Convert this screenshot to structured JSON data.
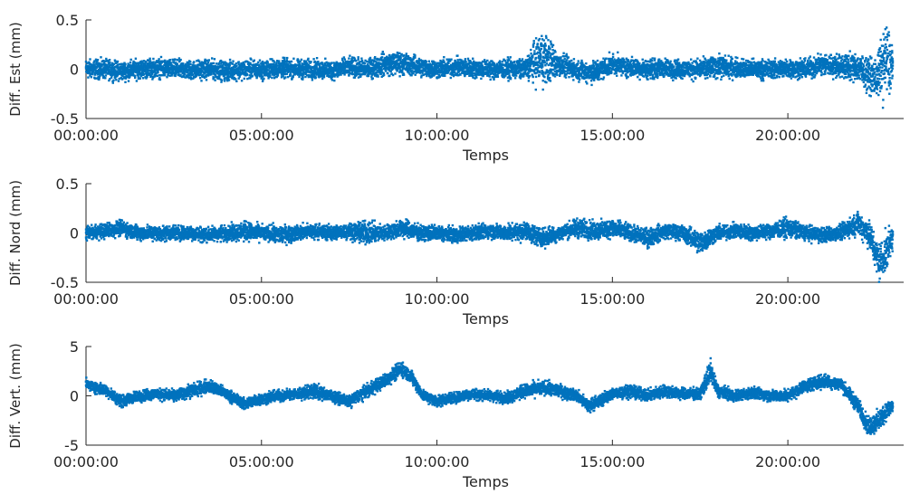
{
  "chart_data": [
    {
      "type": "scatter",
      "id": "est",
      "ylabel": "Diff. Est (mm)",
      "xlabel": "Temps",
      "ylim": [
        -0.5,
        0.5
      ],
      "yticks": [
        "0.5",
        "0",
        "-0.5"
      ],
      "xticks": [
        "00:00:00",
        "05:00:00",
        "10:00:00",
        "15:00:00",
        "20:00:00"
      ],
      "xlim_hours": [
        0,
        23.3
      ],
      "color": "#0072bd",
      "series": [
        {
          "x": [
            0,
            0.5,
            1,
            1.5,
            2,
            2.5,
            3,
            3.5,
            4,
            4.5,
            5,
            5.5,
            6,
            6.5,
            7,
            7.5,
            8,
            8.5,
            9,
            9.5,
            10,
            10.5,
            11,
            11.5,
            12,
            12.5,
            13,
            13.5,
            14,
            14.5,
            15,
            15.5,
            16,
            16.5,
            17,
            17.5,
            18,
            18.5,
            19,
            19.5,
            20,
            20.5,
            21,
            21.5,
            22,
            22.5,
            22.8,
            23
          ],
          "y": [
            0.0,
            0.0,
            -0.02,
            0.0,
            0.01,
            0.0,
            -0.01,
            0.0,
            -0.02,
            0.0,
            -0.01,
            0.01,
            0.0,
            0.0,
            -0.01,
            0.02,
            0.0,
            0.05,
            0.06,
            0.02,
            0.0,
            0.02,
            0.01,
            0.0,
            0.0,
            0.0,
            0.12,
            0.04,
            -0.01,
            -0.03,
            0.05,
            0.02,
            0.0,
            0.01,
            0.0,
            0.0,
            0.03,
            0.01,
            0.0,
            0.0,
            0.01,
            0.0,
            0.05,
            0.03,
            0.02,
            -0.1,
            0.1,
            0.0
          ],
          "spread": [
            0.1,
            0.1,
            0.1,
            0.1,
            0.1,
            0.1,
            0.1,
            0.1,
            0.1,
            0.1,
            0.1,
            0.1,
            0.1,
            0.1,
            0.1,
            0.1,
            0.1,
            0.12,
            0.12,
            0.1,
            0.1,
            0.1,
            0.1,
            0.1,
            0.1,
            0.1,
            0.3,
            0.12,
            0.1,
            0.12,
            0.1,
            0.1,
            0.1,
            0.1,
            0.1,
            0.1,
            0.12,
            0.1,
            0.1,
            0.1,
            0.1,
            0.1,
            0.12,
            0.12,
            0.15,
            0.2,
            0.4,
            0.3
          ]
        }
      ]
    },
    {
      "type": "scatter",
      "id": "nord",
      "ylabel": "Diff. Nord (mm)",
      "xlabel": "Temps",
      "ylim": [
        -0.5,
        0.5
      ],
      "yticks": [
        "0.5",
        "0",
        "-0.5"
      ],
      "xticks": [
        "00:00:00",
        "05:00:00",
        "10:00:00",
        "15:00:00",
        "20:00:00"
      ],
      "xlim_hours": [
        0,
        23.3
      ],
      "color": "#0072bd",
      "series": [
        {
          "x": [
            0,
            0.5,
            1,
            1.5,
            2,
            2.5,
            3,
            3.5,
            4,
            4.5,
            5,
            5.5,
            6,
            6.5,
            7,
            7.5,
            8,
            8.5,
            9,
            9.5,
            10,
            10.5,
            11,
            11.5,
            12,
            12.5,
            13,
            13.5,
            14,
            14.5,
            15,
            15.5,
            16,
            16.5,
            17,
            17.5,
            18,
            18.5,
            19,
            19.5,
            20,
            20.5,
            21,
            21.5,
            22,
            22.3,
            22.6,
            22.8,
            23
          ],
          "y": [
            0.0,
            0.02,
            0.05,
            0.0,
            0.0,
            0.0,
            0.0,
            -0.02,
            0.0,
            0.02,
            0.0,
            -0.02,
            0.0,
            0.02,
            0.0,
            0.02,
            0.0,
            0.0,
            0.05,
            0.0,
            0.0,
            -0.02,
            0.0,
            0.02,
            0.0,
            0.02,
            -0.05,
            0.0,
            0.05,
            0.02,
            0.05,
            0.0,
            -0.05,
            0.02,
            0.0,
            -0.1,
            0.0,
            0.02,
            0.0,
            0.02,
            0.05,
            0.0,
            -0.02,
            0.0,
            0.1,
            0.0,
            -0.3,
            -0.2,
            0.0
          ],
          "spread": [
            0.06,
            0.08,
            0.08,
            0.08,
            0.08,
            0.08,
            0.08,
            0.08,
            0.08,
            0.1,
            0.08,
            0.1,
            0.08,
            0.08,
            0.08,
            0.08,
            0.12,
            0.08,
            0.1,
            0.08,
            0.08,
            0.08,
            0.08,
            0.08,
            0.08,
            0.1,
            0.1,
            0.08,
            0.1,
            0.1,
            0.1,
            0.08,
            0.1,
            0.08,
            0.08,
            0.12,
            0.08,
            0.08,
            0.08,
            0.08,
            0.1,
            0.08,
            0.08,
            0.08,
            0.12,
            0.15,
            0.2,
            0.2,
            0.15
          ]
        }
      ]
    },
    {
      "type": "scatter",
      "id": "vert",
      "ylabel": "Diff. Vert. (mm)",
      "xlabel": "Temps",
      "ylim": [
        -5,
        5
      ],
      "yticks": [
        "5",
        "0",
        "-5"
      ],
      "xticks": [
        "00:00:00",
        "05:00:00",
        "10:00:00",
        "15:00:00",
        "20:00:00"
      ],
      "xlim_hours": [
        0,
        23.3
      ],
      "color": "#0072bd",
      "series": [
        {
          "x": [
            0,
            0.3,
            0.6,
            1,
            1.5,
            2,
            2.5,
            3,
            3.5,
            4,
            4.5,
            5,
            5.5,
            6,
            6.5,
            7,
            7.5,
            8,
            8.5,
            9,
            9.3,
            9.6,
            10,
            10.5,
            11,
            11.5,
            12,
            12.5,
            13,
            13.5,
            14,
            14.3,
            14.6,
            15,
            15.5,
            16,
            16.5,
            17,
            17.5,
            17.8,
            18,
            18.5,
            19,
            19.5,
            20,
            20.5,
            21,
            21.5,
            22,
            22.3,
            22.6,
            22.8,
            23
          ],
          "y": [
            1.2,
            0.8,
            0.5,
            -0.6,
            0.0,
            0.2,
            0.0,
            0.5,
            1.0,
            0.2,
            -0.8,
            -0.3,
            0.0,
            0.2,
            0.5,
            0.0,
            -0.6,
            0.5,
            1.5,
            2.8,
            1.8,
            0.0,
            -0.5,
            -0.2,
            0.2,
            0.0,
            -0.2,
            0.5,
            0.8,
            0.5,
            0.0,
            -1.0,
            -0.6,
            0.2,
            0.5,
            0.0,
            0.5,
            0.2,
            0.2,
            2.5,
            0.5,
            0.0,
            0.3,
            0.0,
            0.0,
            1.0,
            1.5,
            1.2,
            -1.0,
            -3.2,
            -2.5,
            -1.5,
            -1.0
          ],
          "spread": [
            0.5,
            0.6,
            0.6,
            0.6,
            0.6,
            0.6,
            0.6,
            0.7,
            0.7,
            0.6,
            0.6,
            0.6,
            0.6,
            0.6,
            0.8,
            0.6,
            0.6,
            0.7,
            0.7,
            0.8,
            0.7,
            0.6,
            0.6,
            0.6,
            0.6,
            0.6,
            0.6,
            0.7,
            0.8,
            0.7,
            0.6,
            0.7,
            0.7,
            0.6,
            0.7,
            0.6,
            0.7,
            0.6,
            0.6,
            1.3,
            0.7,
            0.6,
            0.6,
            0.6,
            0.6,
            0.7,
            0.7,
            0.7,
            0.8,
            1.0,
            1.2,
            1.0,
            0.8
          ]
        }
      ]
    }
  ]
}
